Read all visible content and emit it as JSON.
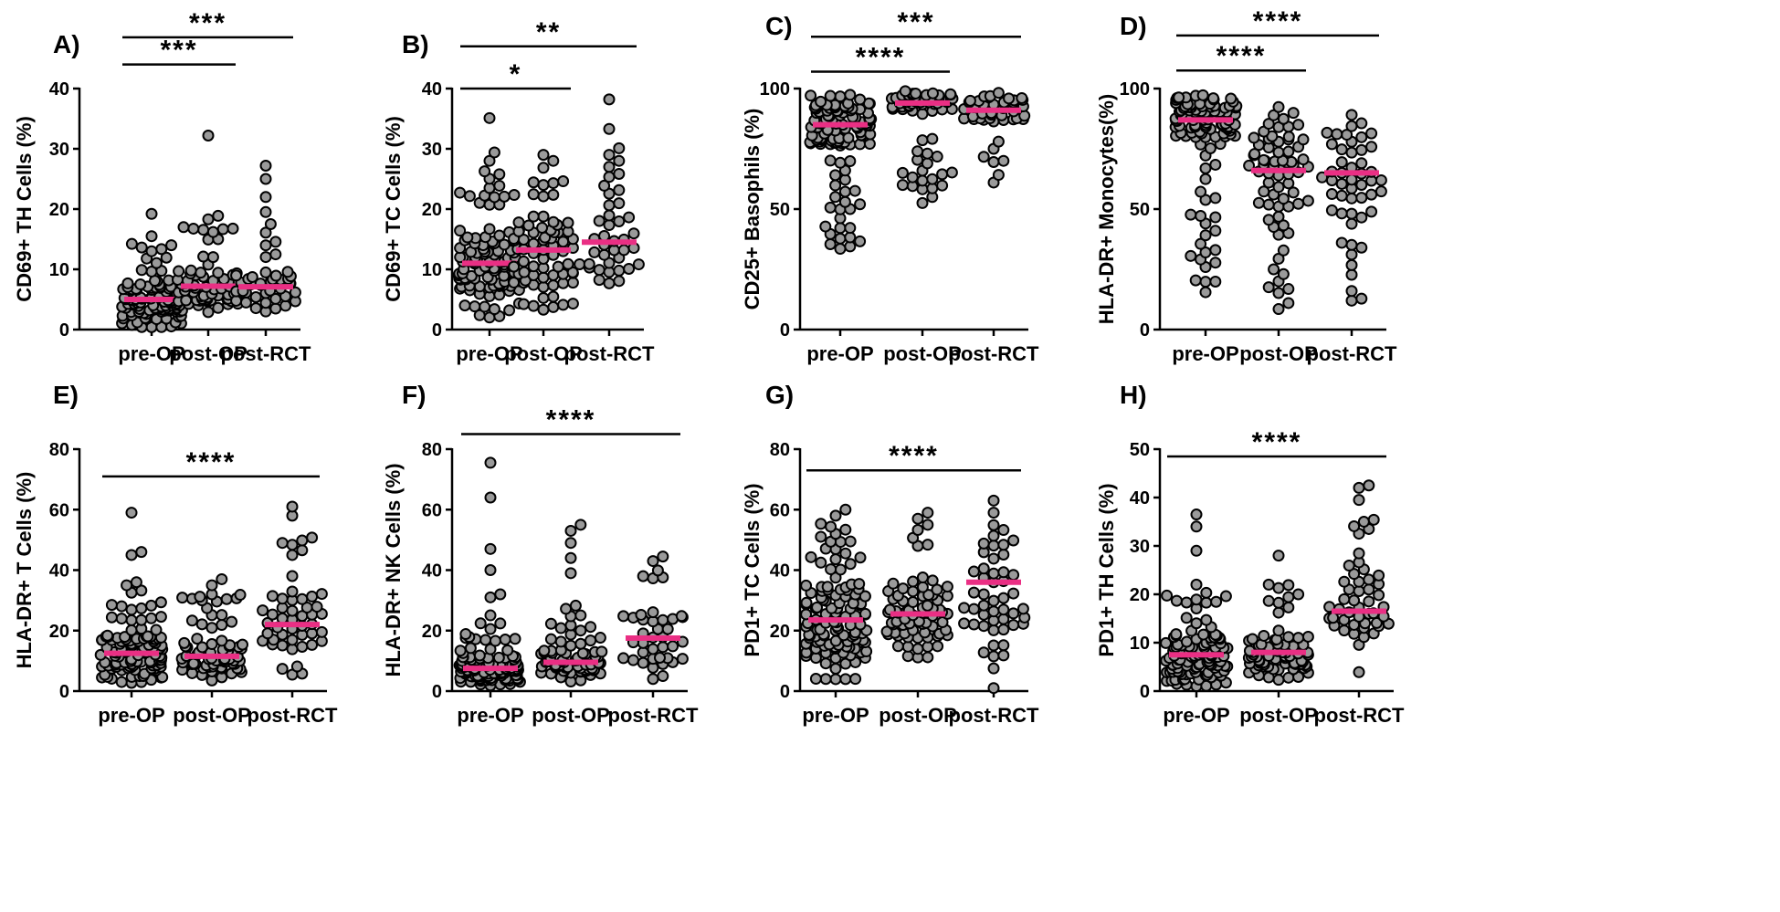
{
  "colors": {
    "median": "#ea2f84",
    "dot_fill": "#9a9a9a",
    "dot_stroke": "#000000"
  },
  "chart_data": [
    {
      "type": "scatter",
      "panel": "A)",
      "ylabel": "CD69+ TH Cells (%)",
      "categories": [
        "pre-OP",
        "post-OP",
        "post-RCT"
      ],
      "ylim": [
        0,
        40
      ],
      "yticks": [
        0,
        10,
        20,
        30,
        40
      ],
      "medians": [
        5.0,
        7.2,
        7.1
      ],
      "groups": [
        {
          "n": 110,
          "min": 0.4,
          "max": 19.2,
          "extra": [
            19.2,
            15.5,
            14.0,
            13.0,
            0.4
          ]
        },
        {
          "n": 70,
          "min": 2.8,
          "max": 32.2,
          "extra": [
            32.2,
            18.3,
            17.0,
            15.0
          ]
        },
        {
          "n": 45,
          "min": 2.6,
          "max": 27.2,
          "extra": [
            27.2,
            25.0,
            22.0,
            19.5,
            17.5
          ]
        }
      ],
      "comparisons": [
        {
          "from": "pre-OP",
          "to": "post-OP",
          "label": "***",
          "y": 44
        },
        {
          "from": "pre-OP",
          "to": "post-RCT",
          "label": "***",
          "y": 48.5
        }
      ]
    },
    {
      "type": "scatter",
      "panel": "B)",
      "ylabel": "CD69+ TC Cells (%)",
      "categories": [
        "pre-OP",
        "post-OP",
        "post-RCT"
      ],
      "ylim": [
        0,
        40
      ],
      "yticks": [
        0,
        10,
        20,
        30,
        40
      ],
      "medians": [
        11.0,
        13.2,
        14.5
      ],
      "groups": [
        {
          "n": 110,
          "min": 1.8,
          "max": 35.1,
          "extra": [
            35.1,
            29.4,
            28.0,
            2.0
          ]
        },
        {
          "n": 70,
          "min": 3.3,
          "max": 29.0,
          "extra": [
            29.0,
            28.0,
            24.0,
            3.3
          ]
        },
        {
          "n": 42,
          "min": 6.2,
          "max": 38.2,
          "extra": [
            38.2,
            33.3,
            29.0,
            28.0,
            27.0
          ]
        }
      ],
      "comparisons": [
        {
          "from": "pre-OP",
          "to": "post-OP",
          "label": "*",
          "y": 40
        },
        {
          "from": "pre-OP",
          "to": "post-RCT",
          "label": "**",
          "y": 47
        }
      ]
    },
    {
      "type": "scatter",
      "panel": "C)",
      "ylabel": "CD25+ Basophils (%)",
      "categories": [
        "pre-OP",
        "post-OP",
        "post-RCT"
      ],
      "ylim": [
        0,
        100
      ],
      "yticks": [
        0,
        50,
        100
      ],
      "medians": [
        85.0,
        94.0,
        91.0
      ],
      "groups": [
        {
          "n": 120,
          "min": 33.5,
          "max": 99.5,
          "extra": [
            33.5,
            34.5,
            50.0,
            52.0,
            55.0
          ]
        },
        {
          "n": 70,
          "min": 52.5,
          "max": 99.5,
          "extra": [
            52.5,
            55.0,
            60.0,
            65.0
          ]
        },
        {
          "n": 45,
          "min": 61.0,
          "max": 99.5,
          "extra": [
            61.0,
            70.0,
            75.0
          ]
        }
      ],
      "comparisons": [
        {
          "from": "pre-OP",
          "to": "post-OP",
          "label": "****",
          "y": 107
        },
        {
          "from": "pre-OP",
          "to": "post-RCT",
          "label": "***",
          "y": 121.5
        }
      ]
    },
    {
      "type": "scatter",
      "panel": "D)",
      "ylabel": "HLA-DR+ Monocytes(%)",
      "categories": [
        "pre-OP",
        "post-OP",
        "post-RCT"
      ],
      "ylim": [
        0,
        100
      ],
      "yticks": [
        0,
        50,
        100
      ],
      "medians": [
        87.0,
        66.0,
        65.0
      ],
      "groups": [
        {
          "n": 120,
          "min": 15.5,
          "max": 99.0,
          "extra": [
            15.5,
            32.0,
            33.0,
            41.0,
            44.0
          ]
        },
        {
          "n": 70,
          "min": 8.5,
          "max": 96.5,
          "extra": [
            8.5,
            11.0,
            20.0,
            23.0,
            25.0
          ]
        },
        {
          "n": 50,
          "min": 12.0,
          "max": 96.0,
          "extra": [
            12.0,
            16.0,
            34.0,
            36.0
          ]
        }
      ],
      "comparisons": [
        {
          "from": "pre-OP",
          "to": "post-OP",
          "label": "****",
          "y": 107.5
        },
        {
          "from": "pre-OP",
          "to": "post-RCT",
          "label": "****",
          "y": 122
        }
      ]
    },
    {
      "type": "scatter",
      "panel": "E)",
      "ylabel": "HLA-DR+ T Cells (%)",
      "categories": [
        "pre-OP",
        "post-OP",
        "post-RCT"
      ],
      "ylim": [
        0,
        80
      ],
      "yticks": [
        0,
        20,
        40,
        60,
        80
      ],
      "medians": [
        12.5,
        11.5,
        22.0
      ],
      "groups": [
        {
          "n": 120,
          "min": 2.5,
          "max": 59.0,
          "extra": [
            59.0,
            46.0,
            45.0,
            36.0,
            35.0
          ]
        },
        {
          "n": 75,
          "min": 2.5,
          "max": 37.0,
          "extra": [
            37.0,
            35.0,
            30.0
          ]
        },
        {
          "n": 50,
          "min": 3.5,
          "max": 61.0,
          "extra": [
            61.0,
            58.0,
            49.0,
            45.0
          ]
        }
      ],
      "comparisons": [
        {
          "from": "pre-OP",
          "to": "post-RCT",
          "label": "****",
          "y": 71
        }
      ]
    },
    {
      "type": "scatter",
      "panel": "F)",
      "ylabel": "HLA-DR+ NK Cells (%)",
      "categories": [
        "pre-OP",
        "post-OP",
        "post-RCT"
      ],
      "ylim": [
        0,
        80
      ],
      "yticks": [
        0,
        20,
        40,
        60,
        80
      ],
      "medians": [
        7.5,
        9.5,
        17.5
      ],
      "groups": [
        {
          "n": 120,
          "min": 1.0,
          "max": 75.5,
          "extra": [
            75.5,
            64.0,
            47.0,
            40.0,
            32.0,
            31.0
          ]
        },
        {
          "n": 75,
          "min": 2.5,
          "max": 55.0,
          "extra": [
            55.0,
            53.0,
            49.0,
            44.0,
            39.0
          ]
        },
        {
          "n": 40,
          "min": 3.0,
          "max": 44.5,
          "extra": [
            44.5,
            43.0,
            38.0
          ]
        }
      ],
      "comparisons": [
        {
          "from": "pre-OP",
          "to": "post-RCT",
          "label": "****",
          "y": 85
        }
      ]
    },
    {
      "type": "scatter",
      "panel": "G)",
      "ylabel": "PD1+ TC Cells (%)",
      "categories": [
        "pre-OP",
        "post-OP",
        "post-RCT"
      ],
      "ylim": [
        0,
        80
      ],
      "yticks": [
        0,
        20,
        40,
        60,
        80
      ],
      "medians": [
        23.5,
        25.5,
        36.0
      ],
      "groups": [
        {
          "n": 120,
          "min": 3.5,
          "max": 60.0,
          "extra": [
            60.0,
            58.0,
            52.0,
            4.0
          ]
        },
        {
          "n": 75,
          "min": 10.0,
          "max": 59.0,
          "extra": [
            59.0,
            57.0,
            55.0,
            48.0
          ]
        },
        {
          "n": 50,
          "min": 1.0,
          "max": 63.0,
          "extra": [
            63.0,
            59.0,
            1.0,
            7.5,
            11.5
          ]
        }
      ],
      "comparisons": [
        {
          "from": "pre-OP",
          "to": "post-RCT",
          "label": "****",
          "y": 73
        }
      ]
    },
    {
      "type": "scatter",
      "panel": "H)",
      "ylabel": "PD1+ TH Cells (%)",
      "categories": [
        "pre-OP",
        "post-OP",
        "post-RCT"
      ],
      "ylim": [
        0,
        50
      ],
      "yticks": [
        0,
        10,
        20,
        30,
        40,
        50
      ],
      "medians": [
        7.5,
        8.0,
        16.5
      ],
      "groups": [
        {
          "n": 120,
          "min": 1.0,
          "max": 36.5,
          "extra": [
            36.5,
            34.0,
            29.0,
            22.0
          ]
        },
        {
          "n": 75,
          "min": 2.0,
          "max": 28.0,
          "extra": [
            28.0,
            22.0,
            20.0
          ]
        },
        {
          "n": 50,
          "min": 2.5,
          "max": 42.5,
          "extra": [
            42.5,
            42.0,
            39.5,
            35.0,
            33.5
          ]
        }
      ],
      "comparisons": [
        {
          "from": "pre-OP",
          "to": "post-RCT",
          "label": "****",
          "y": 48.5
        }
      ]
    }
  ]
}
